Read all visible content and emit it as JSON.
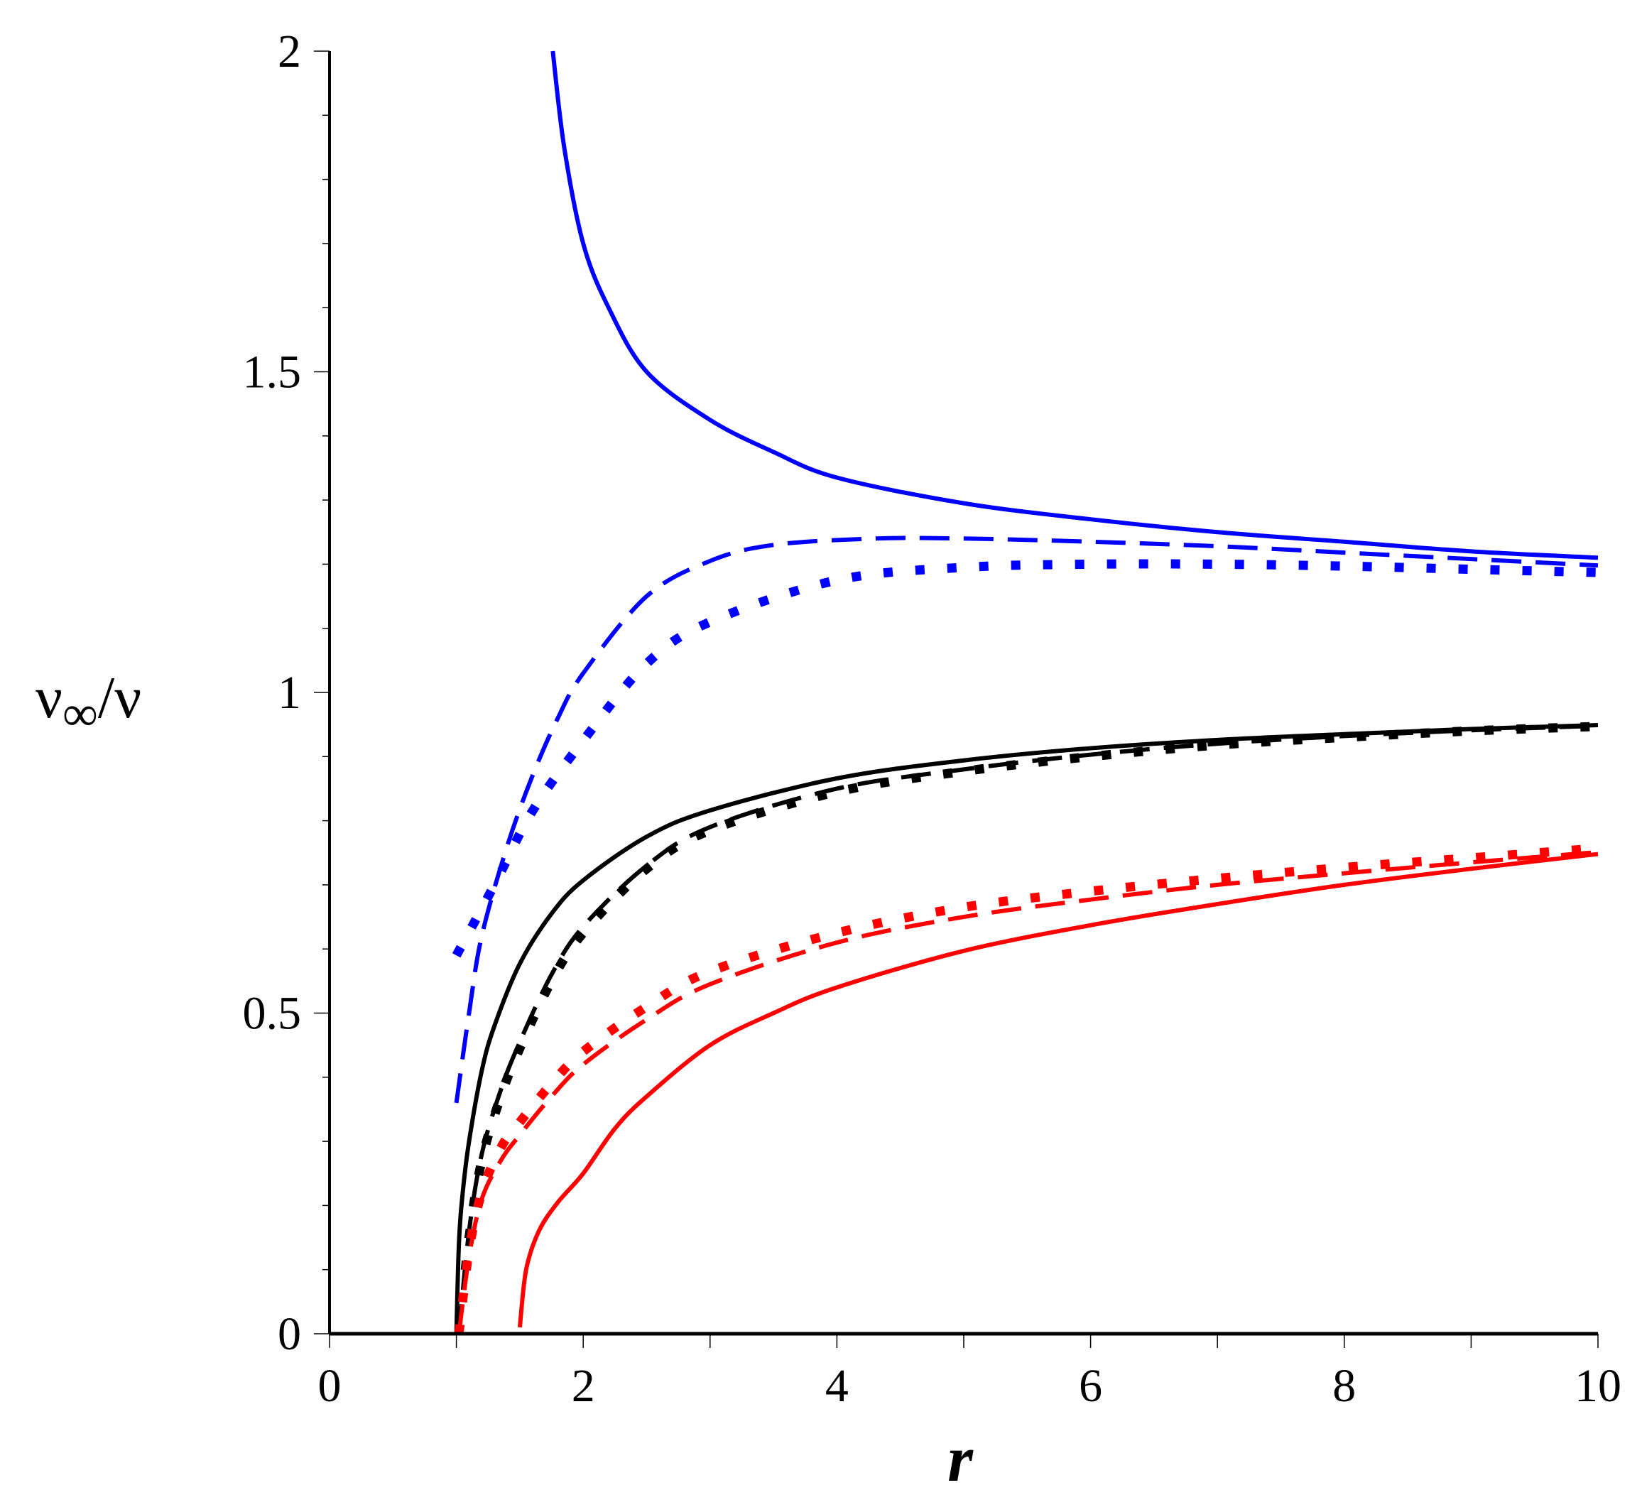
{
  "chart_data": {
    "type": "line",
    "title": "",
    "xlabel": "r",
    "ylabel": "ν∞/ν",
    "ylabel_parts": {
      "main": "ν",
      "sub": "∞",
      "tail": "/ν"
    },
    "xlim": [
      0,
      10
    ],
    "ylim": [
      0,
      2
    ],
    "x_ticks": [
      "0",
      "2",
      "4",
      "6",
      "8",
      "10"
    ],
    "x_tick_values": [
      0,
      2,
      4,
      6,
      8,
      10
    ],
    "y_ticks": [
      "0",
      "0.5",
      "1",
      "1.5",
      "2"
    ],
    "y_tick_values": [
      0,
      0.5,
      1,
      1.5,
      2
    ],
    "grid": false,
    "legend": "none",
    "series": [
      {
        "color": "#0000ff",
        "style": "solid",
        "x": [
          1.76,
          1.85,
          2.0,
          2.2,
          2.5,
          3,
          3.5,
          4,
          5,
          6,
          7,
          8,
          9,
          10
        ],
        "y": [
          2.0,
          1.85,
          1.7,
          1.6,
          1.5,
          1.425,
          1.375,
          1.335,
          1.295,
          1.27,
          1.25,
          1.235,
          1.22,
          1.21
        ]
      },
      {
        "color": "#0000ff",
        "style": "dashed",
        "x": [
          1.0,
          1.1,
          1.2,
          1.4,
          1.6,
          1.8,
          2,
          2.5,
          3,
          3.5,
          4.3,
          5,
          6,
          7,
          8,
          9,
          10
        ],
        "y": [
          0.36,
          0.5,
          0.62,
          0.76,
          0.87,
          0.96,
          1.03,
          1.15,
          1.205,
          1.23,
          1.24,
          1.24,
          1.235,
          1.228,
          1.218,
          1.208,
          1.198
        ]
      },
      {
        "color": "#0000ff",
        "style": "dotted",
        "x": [
          1.0,
          1.3,
          1.6,
          2,
          2.5,
          3,
          4,
          5,
          6,
          7,
          8,
          9,
          10
        ],
        "y": [
          0.59,
          0.7,
          0.815,
          0.925,
          1.045,
          1.11,
          1.175,
          1.195,
          1.2,
          1.2,
          1.197,
          1.192,
          1.187
        ]
      },
      {
        "color": "#000000",
        "style": "solid",
        "x": [
          1.0,
          1.02,
          1.05,
          1.1,
          1.2,
          1.3,
          1.5,
          1.75,
          2,
          2.5,
          3,
          4,
          5,
          6,
          7,
          8,
          9,
          10
        ],
        "y": [
          0,
          0.14,
          0.22,
          0.3,
          0.41,
          0.48,
          0.577,
          0.655,
          0.707,
          0.775,
          0.816,
          0.866,
          0.894,
          0.913,
          0.926,
          0.935,
          0.943,
          0.949
        ]
      },
      {
        "color": "#000000",
        "style": "dashed",
        "x": [
          1.02,
          1.1,
          1.2,
          1.35,
          1.5,
          1.75,
          2,
          2.5,
          3,
          4,
          5,
          6,
          7,
          8,
          9,
          10
        ],
        "y": [
          0,
          0.16,
          0.28,
          0.38,
          0.455,
          0.56,
          0.635,
          0.73,
          0.79,
          0.85,
          0.88,
          0.903,
          0.92,
          0.932,
          0.941,
          0.948
        ]
      },
      {
        "color": "#000000",
        "style": "dotted",
        "x": [
          1.02,
          1.1,
          1.2,
          1.35,
          1.5,
          1.75,
          2,
          2.5,
          3,
          4,
          5,
          6,
          7,
          8,
          9,
          10
        ],
        "y": [
          0,
          0.15,
          0.27,
          0.37,
          0.445,
          0.55,
          0.625,
          0.725,
          0.785,
          0.845,
          0.877,
          0.9,
          0.918,
          0.93,
          0.94,
          0.947
        ]
      },
      {
        "color": "#ff0000",
        "style": "solid",
        "x": [
          1.5,
          1.55,
          1.65,
          1.8,
          2,
          2.25,
          2.5,
          3,
          3.5,
          4,
          5,
          6,
          7,
          8,
          9,
          10
        ],
        "y": [
          0.01,
          0.1,
          0.16,
          0.205,
          0.25,
          0.32,
          0.37,
          0.45,
          0.5,
          0.54,
          0.597,
          0.637,
          0.67,
          0.7,
          0.725,
          0.748
        ]
      },
      {
        "color": "#ff0000",
        "style": "dashed",
        "x": [
          1.02,
          1.1,
          1.2,
          1.35,
          1.5,
          1.75,
          2,
          2.5,
          3,
          4,
          5,
          6,
          7,
          8,
          9,
          10
        ],
        "y": [
          0,
          0.12,
          0.21,
          0.27,
          0.31,
          0.37,
          0.42,
          0.49,
          0.545,
          0.61,
          0.65,
          0.677,
          0.7,
          0.718,
          0.735,
          0.751
        ]
      },
      {
        "color": "#ff0000",
        "style": "dotted",
        "x": [
          1.02,
          1.1,
          1.2,
          1.35,
          1.5,
          1.75,
          2,
          2.5,
          3,
          4,
          5,
          6,
          7,
          8,
          9,
          10
        ],
        "y": [
          0,
          0.13,
          0.22,
          0.29,
          0.33,
          0.39,
          0.44,
          0.51,
          0.565,
          0.625,
          0.665,
          0.69,
          0.71,
          0.727,
          0.742,
          0.757
        ]
      }
    ]
  }
}
